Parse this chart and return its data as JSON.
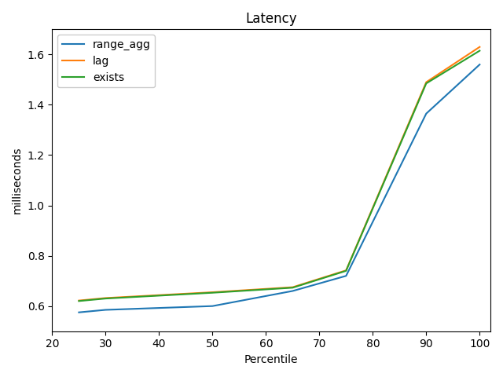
{
  "title": "Latency",
  "xlabel": "Percentile",
  "ylabel": "milliseconds",
  "series": [
    {
      "label": "range_agg",
      "color": "#1f77b4",
      "x": [
        25,
        30,
        50,
        65,
        75,
        90,
        100
      ],
      "y": [
        0.575,
        0.585,
        0.6,
        0.66,
        0.72,
        1.365,
        1.56
      ]
    },
    {
      "label": "lag",
      "color": "#ff7f0e",
      "x": [
        25,
        30,
        50,
        65,
        75,
        90,
        100
      ],
      "y": [
        0.622,
        0.632,
        0.655,
        0.675,
        0.742,
        1.49,
        1.63
      ]
    },
    {
      "label": "exists",
      "color": "#2ca02c",
      "x": [
        25,
        30,
        50,
        65,
        75,
        90,
        100
      ],
      "y": [
        0.62,
        0.63,
        0.653,
        0.673,
        0.74,
        1.485,
        1.615
      ]
    }
  ],
  "xlim": [
    20,
    102
  ],
  "ylim": [
    0.5,
    1.7
  ],
  "xticks": [
    20,
    30,
    40,
    50,
    60,
    70,
    80,
    90,
    100
  ],
  "yticks": [
    0.6,
    0.8,
    1.0,
    1.2,
    1.4,
    1.6
  ],
  "legend_loc": "upper left",
  "figsize": [
    6.4,
    4.8
  ],
  "dpi": 100
}
